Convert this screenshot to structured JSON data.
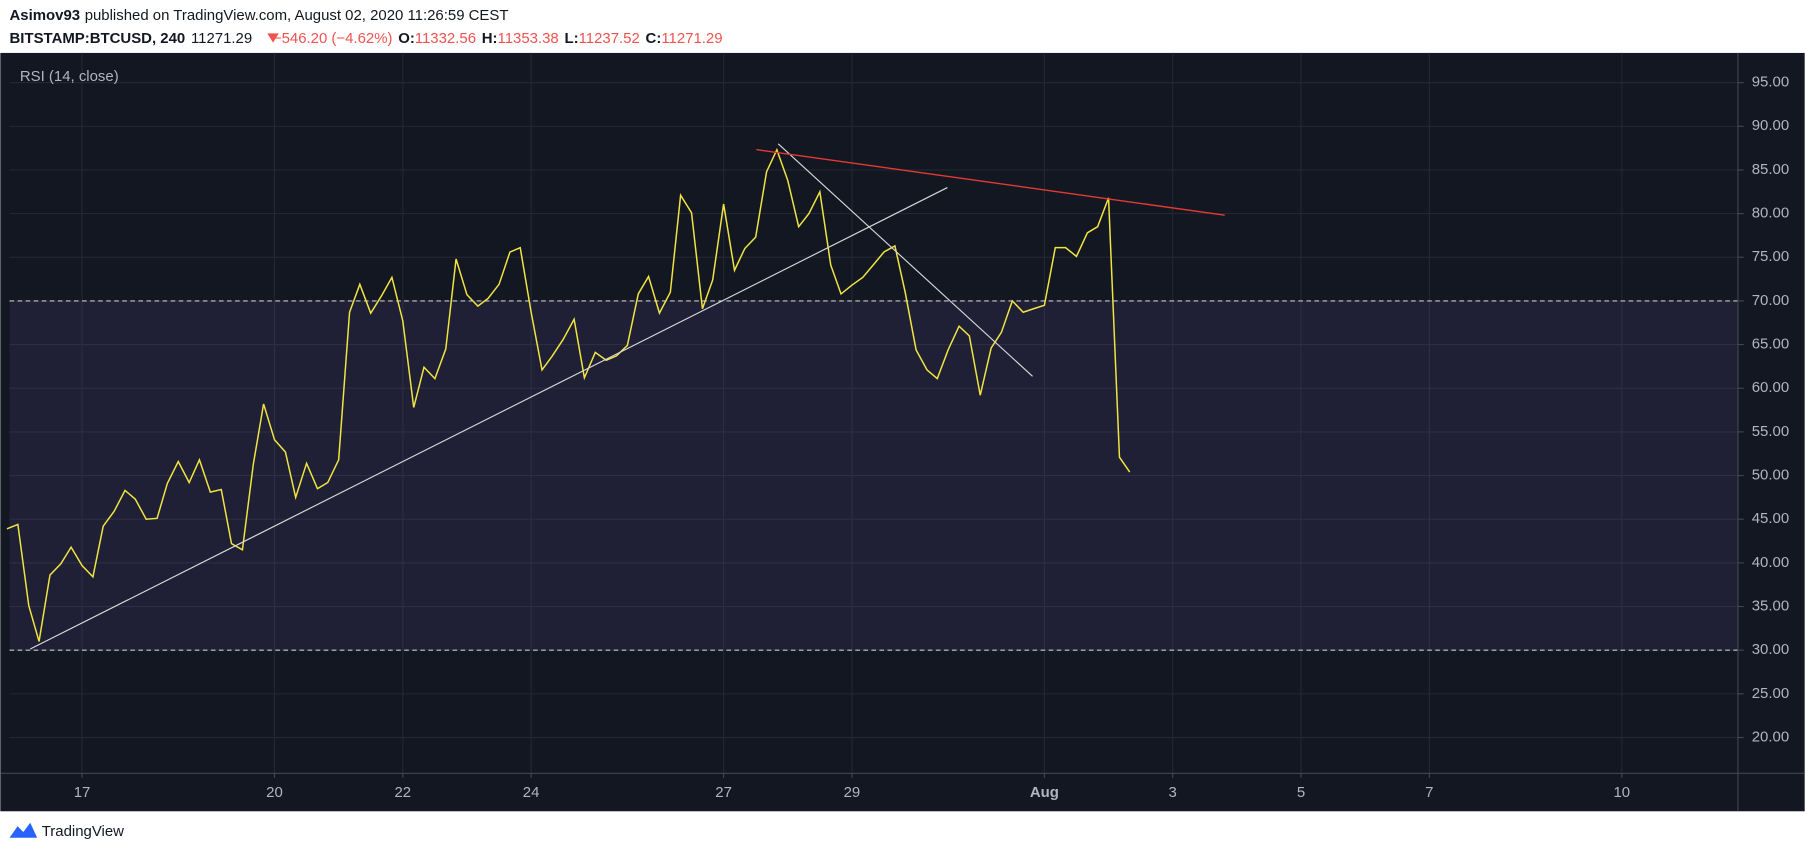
{
  "header": {
    "author": "Asimov93",
    "published": "published on TradingView.com, August 02, 2020 11:26:59 CEST",
    "symbol": "BITSTAMP:BTCUSD, 240",
    "last": "11271.29",
    "change": "−546.20 (−4.62%)",
    "ohlc": [
      {
        "label": "O:",
        "value": "11332.56"
      },
      {
        "label": "H:",
        "value": "11353.38"
      },
      {
        "label": "L:",
        "value": "11237.52"
      },
      {
        "label": "C:",
        "value": "11271.29"
      }
    ]
  },
  "footer": {
    "brand": "TradingView"
  },
  "chart_data": {
    "type": "line",
    "x": [
      15.83,
      16,
      16.17,
      16.33,
      16.5,
      16.67,
      16.83,
      17,
      17.17,
      17.33,
      17.5,
      17.67,
      17.83,
      18,
      18.17,
      18.33,
      18.5,
      18.67,
      18.83,
      19,
      19.17,
      19.33,
      19.5,
      19.67,
      19.83,
      20,
      20.17,
      20.33,
      20.5,
      20.67,
      20.83,
      21,
      21.17,
      21.33,
      21.5,
      21.67,
      21.83,
      22,
      22.17,
      22.33,
      22.5,
      22.67,
      22.83,
      23,
      23.17,
      23.33,
      23.5,
      23.67,
      23.83,
      24,
      24.17,
      24.33,
      24.5,
      24.67,
      24.83,
      25,
      25.17,
      25.33,
      25.5,
      25.67,
      25.83,
      26,
      26.17,
      26.33,
      26.5,
      26.67,
      26.83,
      27,
      27.17,
      27.33,
      27.5,
      27.67,
      27.83,
      28,
      28.17,
      28.33,
      28.5,
      28.67,
      28.83,
      29,
      29.17,
      29.33,
      29.5,
      29.67,
      29.83,
      30,
      30.17,
      30.33,
      30.5,
      30.67,
      30.83,
      31,
      31.17,
      31.33,
      31.5,
      31.67,
      31.83,
      32,
      32.17,
      32.33,
      32.5,
      32.67,
      32.83,
      33,
      33.17,
      33.33
    ],
    "series": [
      {
        "name": "RSI (14, close)",
        "color": "#f0e442",
        "values": [
          43.9,
          44.4,
          35.1,
          31.0,
          38.6,
          39.9,
          41.8,
          39.7,
          38.4,
          44.2,
          45.9,
          48.3,
          47.3,
          45.0,
          45.1,
          49.1,
          51.6,
          49.2,
          51.8,
          48.1,
          48.4,
          42.2,
          41.5,
          51.3,
          58.2,
          54.1,
          52.7,
          47.5,
          51.4,
          48.5,
          49.2,
          51.8,
          68.7,
          71.9,
          68.6,
          70.6,
          72.7,
          67.7,
          57.8,
          62.4,
          61.1,
          64.5,
          74.8,
          70.7,
          69.4,
          70.3,
          71.9,
          75.6,
          76.1,
          68.7,
          62.1,
          63.7,
          65.6,
          67.9,
          61.2,
          64.1,
          63.2,
          63.7,
          64.9,
          70.8,
          72.8,
          68.6,
          71.0,
          82.1,
          80.1,
          69.1,
          72.4,
          81.1,
          73.5,
          76.0,
          77.3,
          84.8,
          87.3,
          83.8,
          78.5,
          80.0,
          82.5,
          74.1,
          70.8,
          71.8,
          72.7,
          74.1,
          75.6,
          76.3,
          71.0,
          64.4,
          62.1,
          61.1,
          64.4,
          67.1,
          66.0,
          59.2,
          64.6,
          66.4,
          70.0,
          68.7,
          69.1,
          69.5,
          76.1,
          76.1,
          75.1,
          77.8,
          78.5,
          81.8,
          52.1,
          50.4
        ]
      }
    ],
    "levels": [
      30,
      70
    ],
    "xlim": [
      15.87,
      42.81
    ],
    "xticks": [
      17,
      20,
      22,
      24,
      27,
      29,
      {
        "value": 32,
        "label": "Aug"
      },
      {
        "value": 34,
        "label": "3"
      },
      {
        "value": 36,
        "label": "5"
      },
      {
        "value": 38,
        "label": "7"
      },
      {
        "value": 41,
        "label": "10"
      }
    ],
    "ylim": [
      15.9,
      98.4
    ],
    "yticks": [
      {
        "value": 20,
        "label": "20.00"
      },
      {
        "value": 25,
        "label": "25.00"
      },
      {
        "value": 30,
        "label": "30.00"
      },
      {
        "value": 35,
        "label": "35.00"
      },
      {
        "value": 40,
        "label": "40.00"
      },
      {
        "value": 45,
        "label": "45.00"
      },
      {
        "value": 50,
        "label": "50.00"
      },
      {
        "value": 55,
        "label": "55.00"
      },
      {
        "value": 60,
        "label": "60.00"
      },
      {
        "value": 65,
        "label": "65.00"
      },
      {
        "value": 70,
        "label": "70.00"
      },
      {
        "value": 75,
        "label": "75.00"
      },
      {
        "value": 80,
        "label": "80.00"
      },
      {
        "value": 85,
        "label": "85.00"
      },
      {
        "value": 90,
        "label": "90.00"
      },
      {
        "value": 95,
        "label": "95.00"
      }
    ],
    "grid": true
  }
}
